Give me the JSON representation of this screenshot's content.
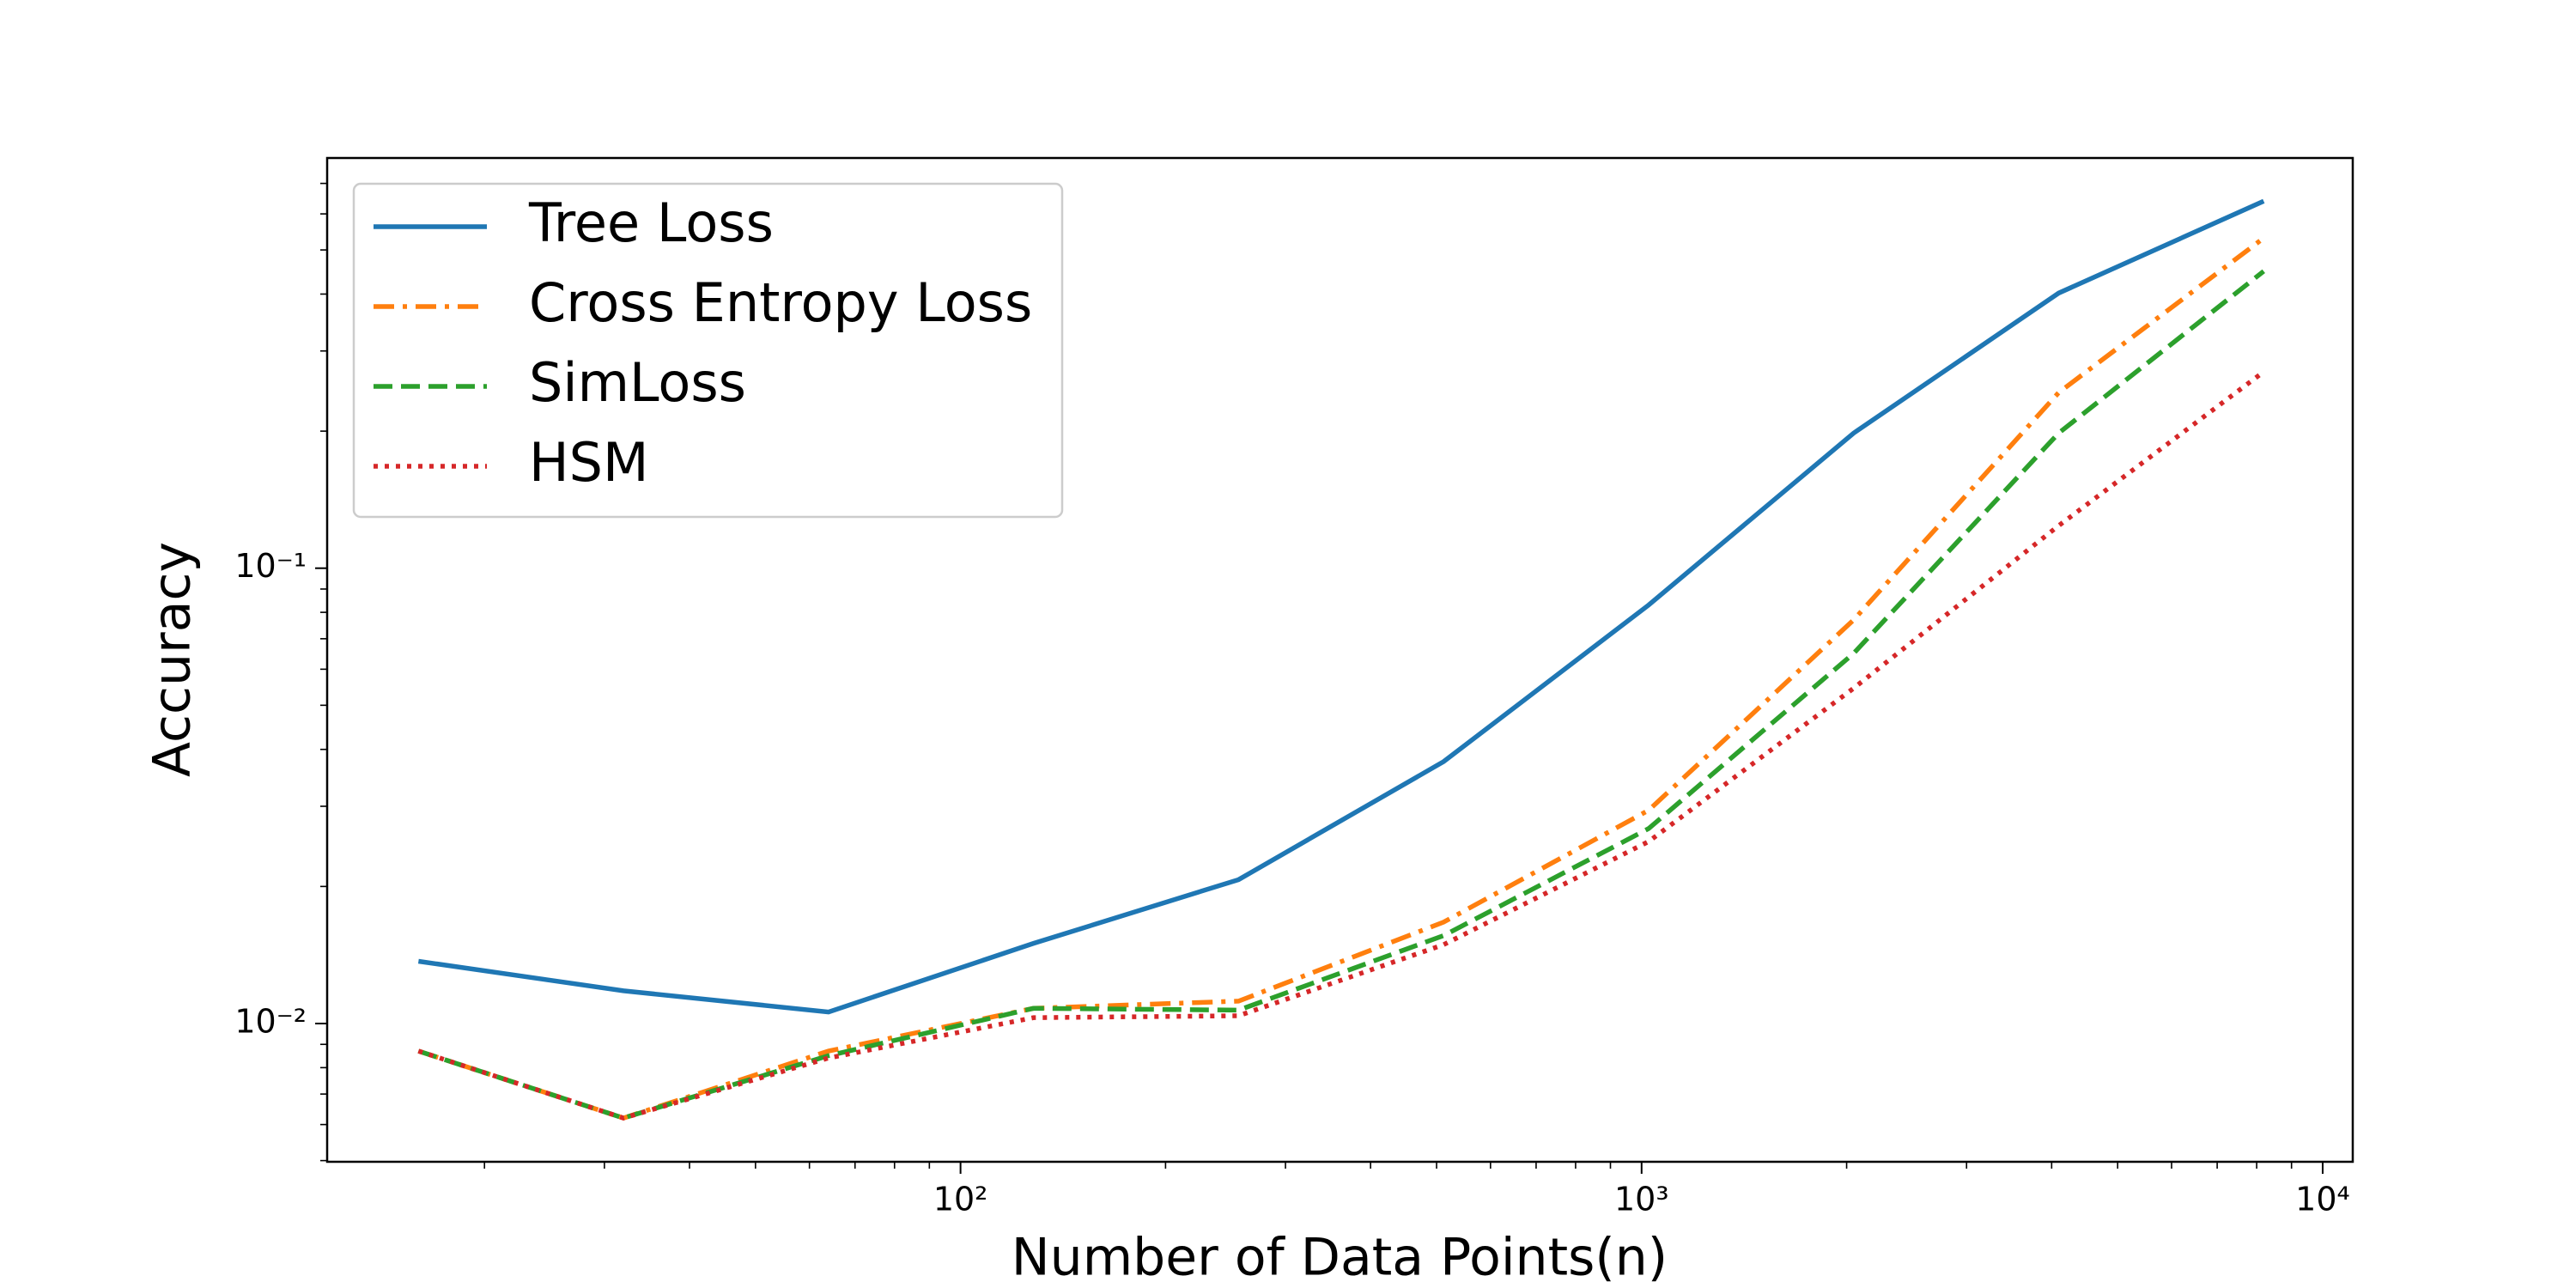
{
  "chart_data": {
    "type": "line",
    "xlabel": "Number of Data Points(n)",
    "ylabel": "Accuracy",
    "x": [
      16,
      32,
      64,
      128,
      256,
      512,
      1024,
      2048,
      4096,
      8192
    ],
    "series": [
      {
        "name": "Tree Loss",
        "color": "#1f77b4",
        "linestyle": "solid",
        "values": [
          0.0137,
          0.0118,
          0.0106,
          0.015,
          0.0207,
          0.0376,
          0.083,
          0.198,
          0.402,
          0.64
        ]
      },
      {
        "name": "Cross Entropy Loss",
        "color": "#ff7f0e",
        "linestyle": "dashdot",
        "values": [
          0.0087,
          0.0062,
          0.0087,
          0.0108,
          0.0112,
          0.0167,
          0.0294,
          0.077,
          0.243,
          0.531
        ]
      },
      {
        "name": "SimLoss",
        "color": "#2ca02c",
        "linestyle": "dashed",
        "values": [
          0.0087,
          0.0062,
          0.0085,
          0.0108,
          0.0107,
          0.0156,
          0.0268,
          0.065,
          0.198,
          0.449
        ]
      },
      {
        "name": "HSM",
        "color": "#d62728",
        "linestyle": "dotted",
        "values": [
          0.0087,
          0.0062,
          0.0084,
          0.0103,
          0.0104,
          0.0149,
          0.0251,
          0.0545,
          0.124,
          0.27
        ]
      }
    ],
    "xscale": "log",
    "yscale": "log",
    "xlim": [
      11.75,
      11070
    ],
    "ylim": [
      0.00497,
      0.796
    ],
    "xticks": [
      {
        "value": 100,
        "label": "10²"
      },
      {
        "value": 1000,
        "label": "10³"
      },
      {
        "value": 10000,
        "label": "10⁴"
      }
    ],
    "yticks": [
      {
        "value": 0.01,
        "label": "10⁻²"
      },
      {
        "value": 0.1,
        "label": "10⁻¹"
      }
    ],
    "xminorticks": [
      20,
      30,
      40,
      50,
      60,
      70,
      80,
      90,
      200,
      300,
      400,
      500,
      600,
      700,
      800,
      900,
      2000,
      3000,
      4000,
      5000,
      6000,
      7000,
      8000,
      9000
    ],
    "yminorticks": [
      0.005,
      0.006,
      0.007,
      0.008,
      0.009,
      0.02,
      0.03,
      0.04,
      0.05,
      0.06,
      0.07,
      0.08,
      0.09,
      0.2,
      0.3,
      0.4,
      0.5,
      0.6,
      0.7
    ],
    "grid": false,
    "legend": "upper left"
  }
}
